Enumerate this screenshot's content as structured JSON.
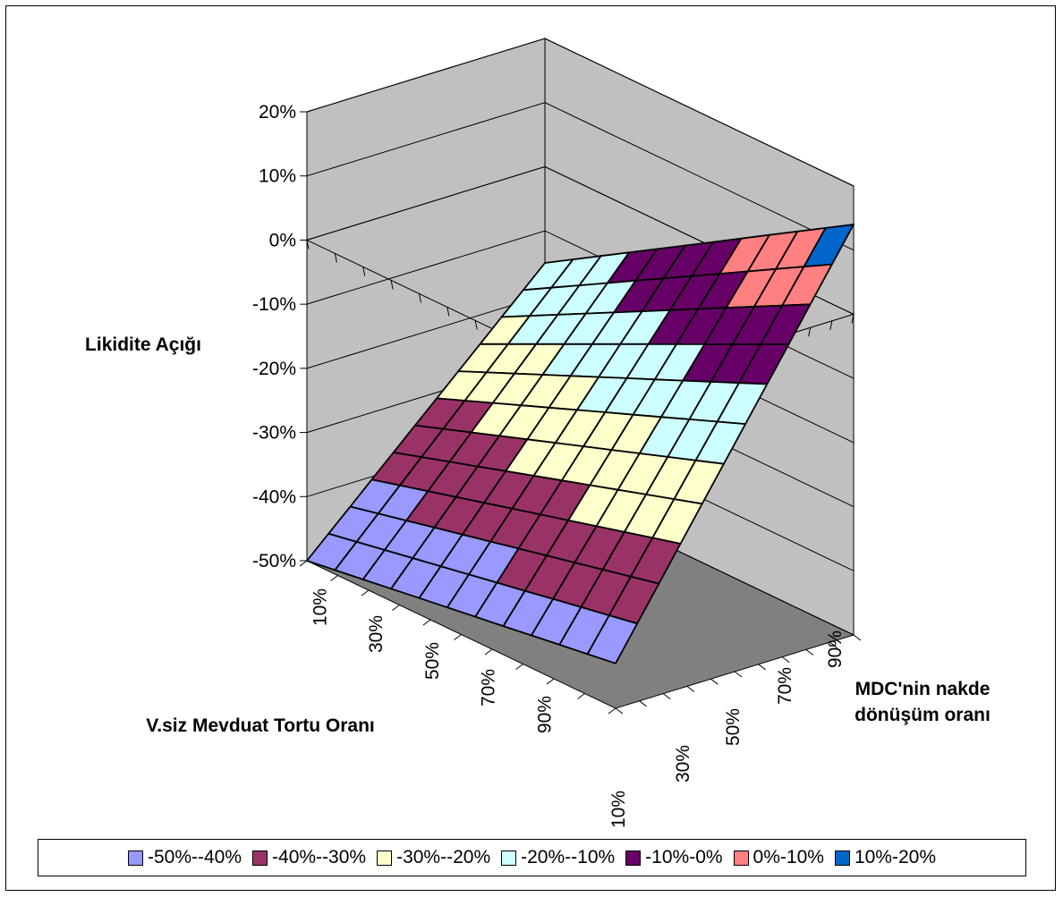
{
  "chart_data": {
    "type": "surface",
    "zlabel": "Likidite Açığı",
    "xlabel": "V.siz Mevduat Tortu Oranı",
    "ylabel_line1": "MDC'nin nakde",
    "ylabel_line2": "dönüşüm oranı",
    "z_ticks": [
      "20%",
      "10%",
      "0%",
      "-10%",
      "-20%",
      "-30%",
      "-40%",
      "-50%"
    ],
    "x_ticks": [
      "10%",
      "30%",
      "50%",
      "70%",
      "90%"
    ],
    "y_ticks": [
      "10%",
      "30%",
      "50%",
      "70%",
      "90%"
    ],
    "zlim": [
      -0.5,
      0.2
    ],
    "grid_rows": 11,
    "grid_cols": 11,
    "surface_corners": {
      "x_min_y_min": -0.5,
      "x_max_y_min": -0.43,
      "x_min_y_max": -0.15,
      "x_max_y_max": 0.14
    },
    "legend": [
      {
        "label": "-50%--40%",
        "color": "#9999ff"
      },
      {
        "label": "-40%--30%",
        "color": "#993366"
      },
      {
        "label": "-30%--20%",
        "color": "#ffffcc"
      },
      {
        "label": "-20%--10%",
        "color": "#ccffff"
      },
      {
        "label": "-10%-0%",
        "color": "#660066"
      },
      {
        "label": "0%-10%",
        "color": "#ff8080"
      },
      {
        "label": "10%-20%",
        "color": "#0066cc"
      }
    ]
  }
}
